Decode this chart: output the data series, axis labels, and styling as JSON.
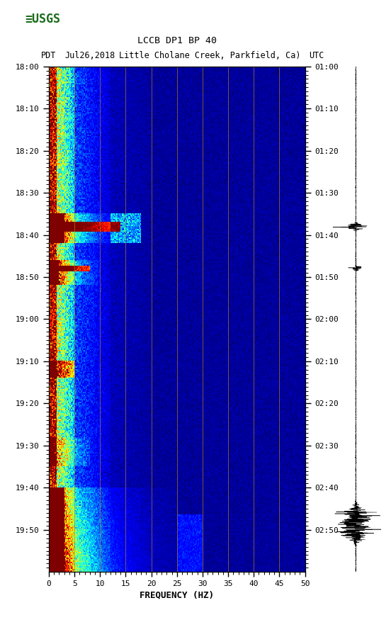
{
  "title1": "LCCB DP1 BP 40",
  "title2": "PDT   Jul26,2018Little Cholane Creek, Parkfield, Ca)     UTC",
  "title2_pdt": "PDT",
  "title2_date": "Jul26,2018",
  "title2_loc": "Little Cholane Creek, Parkfield, Ca)",
  "title2_utc": "UTC",
  "left_times": [
    "18:00",
    "18:10",
    "18:20",
    "18:30",
    "18:40",
    "18:50",
    "19:00",
    "19:10",
    "19:20",
    "19:30",
    "19:40",
    "19:50"
  ],
  "right_times": [
    "01:00",
    "01:10",
    "01:20",
    "01:30",
    "01:40",
    "01:50",
    "02:00",
    "02:10",
    "02:20",
    "02:30",
    "02:40",
    "02:50"
  ],
  "xlabel": "FREQUENCY (HZ)",
  "freq_ticks": [
    0,
    5,
    10,
    15,
    20,
    25,
    30,
    35,
    40,
    45,
    50
  ],
  "grid_freqs": [
    5,
    10,
    15,
    20,
    25,
    30,
    35,
    40,
    45
  ],
  "grid_color": "#8B7355",
  "background_color": "#ffffff"
}
